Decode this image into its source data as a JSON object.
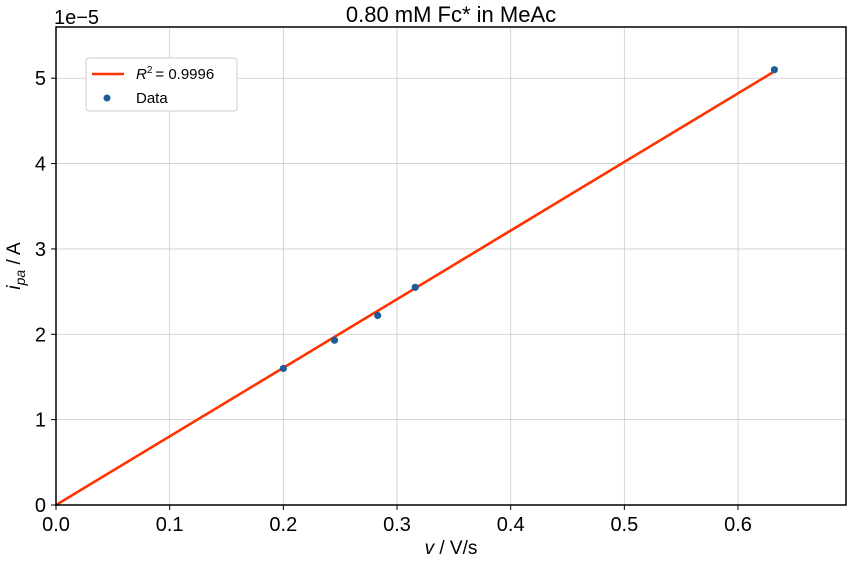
{
  "chart_data": {
    "type": "scatter",
    "title": "0.80 mM Fc* in MeAc",
    "xlabel": "v / V/s",
    "ylabel": "i_pa / A",
    "offset_text": "1e−5",
    "xlim": [
      0.0,
      0.695
    ],
    "ylim": [
      0.0,
      5.6
    ],
    "x_ticks": [
      0.0,
      0.1,
      0.2,
      0.3,
      0.4,
      0.5,
      0.6
    ],
    "x_tick_labels": [
      "0.0",
      "0.1",
      "0.2",
      "0.3",
      "0.4",
      "0.5",
      "0.6"
    ],
    "y_ticks": [
      0,
      1,
      2,
      3,
      4,
      5
    ],
    "y_tick_labels": [
      "0",
      "1",
      "2",
      "3",
      "4",
      "5"
    ],
    "grid": true,
    "legend_placement": "upper-left",
    "series": [
      {
        "name": "Data",
        "kind": "scatter",
        "color": "#1f5b99",
        "points": [
          {
            "x": 0.2,
            "y": 1.6
          },
          {
            "x": 0.245,
            "y": 1.93
          },
          {
            "x": 0.283,
            "y": 2.22
          },
          {
            "x": 0.316,
            "y": 2.55
          },
          {
            "x": 0.632,
            "y": 5.1
          }
        ]
      },
      {
        "name": "R² = 0.9996",
        "kind": "line",
        "color": "#ff3300",
        "points": [
          {
            "x": 0.0,
            "y": 0.0
          },
          {
            "x": 0.632,
            "y": 5.08
          }
        ]
      }
    ],
    "legend": {
      "fit_label_prefix": "R",
      "fit_label_sup": "2",
      "fit_label_value": "= 0.9996",
      "data_label": "Data"
    }
  }
}
